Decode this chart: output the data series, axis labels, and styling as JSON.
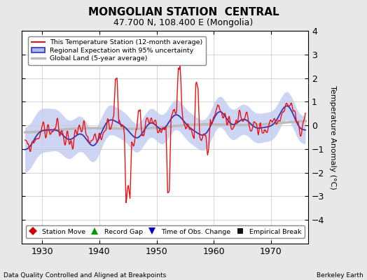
{
  "title": "MONGOLIAN STATION  CENTRAL",
  "subtitle": "47.700 N, 108.400 E (Mongolia)",
  "ylabel": "Temperature Anomaly (°C)",
  "footer_left": "Data Quality Controlled and Aligned at Breakpoints",
  "footer_right": "Berkeley Earth",
  "xlim": [
    1926.5,
    1976.5
  ],
  "ylim": [
    -5,
    4
  ],
  "yticks": [
    -4,
    -3,
    -2,
    -1,
    0,
    1,
    2,
    3,
    4
  ],
  "xticks": [
    1930,
    1940,
    1950,
    1960,
    1970
  ],
  "bg_color": "#E8E8E8",
  "plot_bg": "#FFFFFF",
  "grid_color": "#CCCCCC"
}
